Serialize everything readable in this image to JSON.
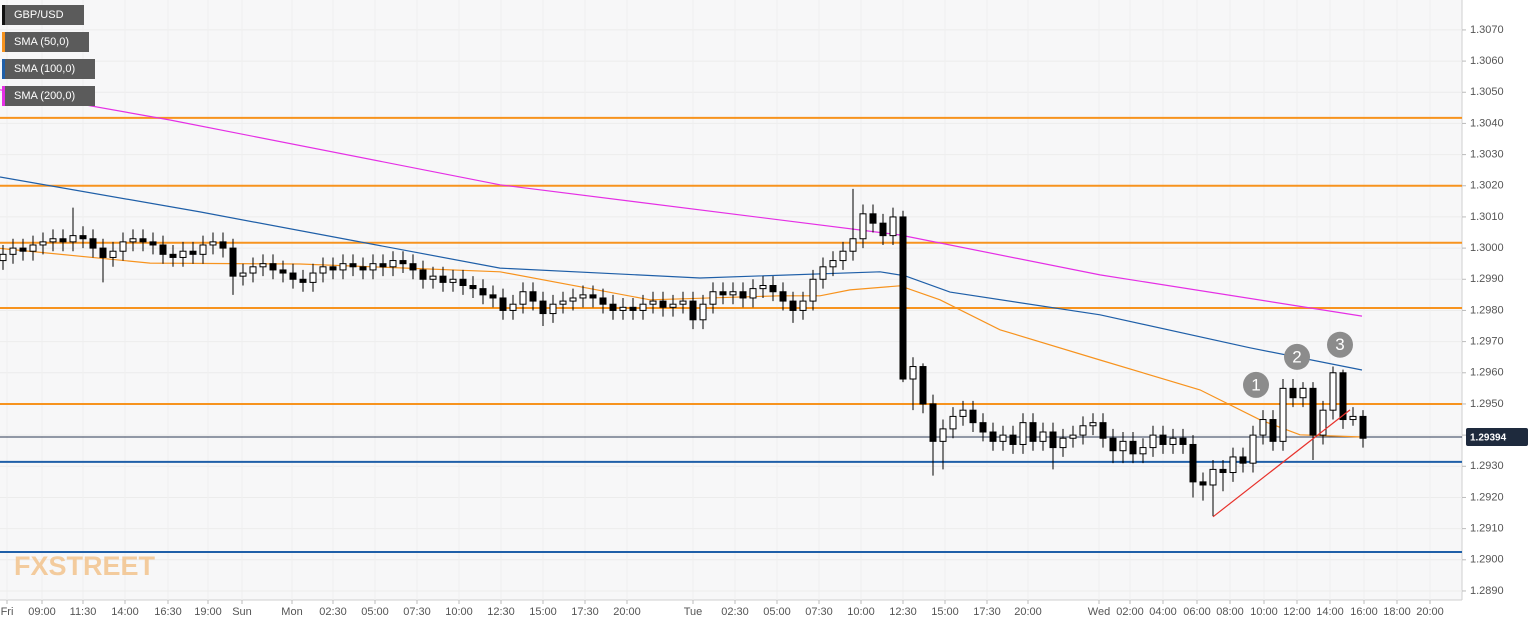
{
  "chart_data": {
    "type": "candlestick",
    "xlim": [
      -0.3,
      145.9
    ],
    "ylim": [
      1.28871,
      1.30796
    ],
    "grid": true,
    "logo": "FXSTREET",
    "last_price": 1.29394,
    "yticks": [
      {
        "value": 1.289,
        "label": "1.2890"
      },
      {
        "value": 1.29,
        "label": "1.2900"
      },
      {
        "value": 1.291,
        "label": "1.2910"
      },
      {
        "value": 1.292,
        "label": "1.2920"
      },
      {
        "value": 1.293,
        "label": "1.2930"
      },
      {
        "value": 1.294,
        "label": "1.2940"
      },
      {
        "value": 1.295,
        "label": "1.2950"
      },
      {
        "value": 1.296,
        "label": "1.2960"
      },
      {
        "value": 1.297,
        "label": "1.2970"
      },
      {
        "value": 1.298,
        "label": "1.2980"
      },
      {
        "value": 1.299,
        "label": "1.2990"
      },
      {
        "value": 1.3,
        "label": "1.3000"
      },
      {
        "value": 1.301,
        "label": "1.3010"
      },
      {
        "value": 1.302,
        "label": "1.3020"
      },
      {
        "value": 1.303,
        "label": "1.3030"
      },
      {
        "value": 1.304,
        "label": "1.3040"
      },
      {
        "value": 1.305,
        "label": "1.3050"
      },
      {
        "value": 1.306,
        "label": "1.3060"
      },
      {
        "value": 1.307,
        "label": "1.3070"
      }
    ],
    "xticks": [
      {
        "value": 0.4,
        "label": "Fri"
      },
      {
        "value": 3.9,
        "label": "09:00"
      },
      {
        "value": 8,
        "label": "11:30"
      },
      {
        "value": 12.2,
        "label": "14:00"
      },
      {
        "value": 16.5,
        "label": "16:30"
      },
      {
        "value": 20.5,
        "label": "19:00"
      },
      {
        "value": 23.9,
        "label": "Sun"
      },
      {
        "value": 28.9,
        "label": "Mon"
      },
      {
        "value": 33,
        "label": "02:30"
      },
      {
        "value": 37.2,
        "label": "05:00"
      },
      {
        "value": 41.4,
        "label": "07:30"
      },
      {
        "value": 45.6,
        "label": "10:00"
      },
      {
        "value": 49.8,
        "label": "12:30"
      },
      {
        "value": 54,
        "label": "15:00"
      },
      {
        "value": 58.2,
        "label": "17:30"
      },
      {
        "value": 62.4,
        "label": "20:00"
      },
      {
        "value": 69,
        "label": "Tue"
      },
      {
        "value": 73.2,
        "label": "02:30"
      },
      {
        "value": 77.4,
        "label": "05:00"
      },
      {
        "value": 81.6,
        "label": "07:30"
      },
      {
        "value": 85.8,
        "label": "10:00"
      },
      {
        "value": 90,
        "label": "12:30"
      },
      {
        "value": 94.2,
        "label": "15:00"
      },
      {
        "value": 98.4,
        "label": "17:30"
      },
      {
        "value": 102.5,
        "label": "20:00"
      },
      {
        "value": 109.6,
        "label": "Wed"
      },
      {
        "value": 112.7,
        "label": "02:00"
      },
      {
        "value": 116,
        "label": "04:00"
      },
      {
        "value": 119.4,
        "label": "06:00"
      },
      {
        "value": 122.7,
        "label": "08:00"
      },
      {
        "value": 126.1,
        "label": "10:00"
      },
      {
        "value": 129.4,
        "label": "12:00"
      },
      {
        "value": 132.7,
        "label": "14:00"
      },
      {
        "value": 136.1,
        "label": "16:00"
      },
      {
        "value": 139.4,
        "label": "18:00"
      },
      {
        "value": 142.7,
        "label": "20:00"
      }
    ],
    "series": [
      {
        "name": "GBP/USD",
        "type": "candlestick",
        "color": "#000000",
        "open": [
          1.2996,
          1.2998,
          1.3,
          1.2999,
          1.3001,
          1.3002,
          1.3003,
          1.3002,
          1.3004,
          1.3003,
          1.3,
          1.2997,
          1.2999,
          1.3002,
          1.3003,
          1.3002,
          1.3001,
          1.2998,
          1.2997,
          1.2999,
          1.2998,
          1.3001,
          1.3002,
          1.3,
          1.2991,
          1.2992,
          1.2994,
          1.2995,
          1.2993,
          1.2992,
          1.299,
          1.2989,
          1.2992,
          1.2994,
          1.2993,
          1.2995,
          1.2994,
          1.2993,
          1.2995,
          1.2994,
          1.2996,
          1.2995,
          1.2993,
          1.299,
          1.2991,
          1.2989,
          1.299,
          1.2988,
          1.2987,
          1.2985,
          1.2984,
          1.298,
          1.2982,
          1.2986,
          1.2983,
          1.2979,
          1.2982,
          1.2983,
          1.2984,
          1.2985,
          1.2984,
          1.2982,
          1.298,
          1.2981,
          1.298,
          1.2982,
          1.2983,
          1.2981,
          1.2982,
          1.2983,
          1.2977,
          1.2982,
          1.2986,
          1.2985,
          1.2986,
          1.2984,
          1.2987,
          1.2988,
          1.2986,
          1.2983,
          1.298,
          1.2983,
          1.299,
          1.2994,
          1.2996,
          1.2999,
          1.3003,
          1.3011,
          1.3008,
          1.3004,
          1.301,
          1.2958,
          1.2962,
          1.295,
          1.2938,
          1.2942,
          1.2946,
          1.2948,
          1.2944,
          1.2941,
          1.2938,
          1.294,
          1.2937,
          1.2944,
          1.2938,
          1.2941,
          1.2936,
          1.2939,
          1.294,
          1.2943,
          1.2944,
          1.2939,
          1.2935,
          1.2938,
          1.2934,
          1.2936,
          1.294,
          1.2937,
          1.2939,
          1.2937,
          1.2925,
          1.2924,
          1.2929,
          1.2928,
          1.2933,
          1.2931,
          1.294,
          1.2945,
          1.2938,
          1.2955,
          1.2952,
          1.2955,
          1.294,
          1.2948,
          1.296,
          1.2945,
          1.2946
        ],
        "high": [
          1.3001,
          1.3003,
          1.3003,
          1.3004,
          1.3005,
          1.3006,
          1.3006,
          1.3013,
          1.3007,
          1.3006,
          1.3003,
          1.3002,
          1.3005,
          1.3006,
          1.3006,
          1.3005,
          1.3004,
          1.3001,
          1.3002,
          1.3002,
          1.3004,
          1.3005,
          1.3005,
          1.3003,
          1.2995,
          1.2997,
          1.2998,
          1.2998,
          1.2996,
          1.2995,
          1.2993,
          1.2995,
          1.2997,
          1.2997,
          1.2998,
          1.2998,
          1.2997,
          1.2998,
          1.2998,
          1.2999,
          1.2999,
          1.2998,
          1.2996,
          1.2994,
          1.2994,
          1.2993,
          1.2993,
          1.2991,
          1.299,
          1.2988,
          1.2987,
          1.2985,
          1.2989,
          1.2989,
          1.2986,
          1.2985,
          1.2986,
          1.2987,
          1.2988,
          1.2988,
          1.2987,
          1.2985,
          1.2984,
          1.2984,
          1.2985,
          1.2986,
          1.2986,
          1.2985,
          1.2986,
          1.2986,
          1.2985,
          1.2989,
          1.2989,
          1.2989,
          1.2989,
          1.299,
          1.2991,
          1.2991,
          1.2989,
          1.2986,
          1.2986,
          1.2993,
          1.2997,
          1.2999,
          1.3002,
          1.3019,
          1.3014,
          1.3014,
          1.3011,
          1.3013,
          1.3012,
          1.2965,
          1.2963,
          1.2953,
          1.2945,
          1.2949,
          1.2951,
          1.2951,
          1.2947,
          1.2944,
          1.2943,
          1.2943,
          1.2947,
          1.2947,
          1.2944,
          1.2944,
          1.2942,
          1.2943,
          1.2946,
          1.2947,
          1.2947,
          1.2942,
          1.2941,
          1.2941,
          1.2939,
          1.2943,
          1.2943,
          1.2942,
          1.2942,
          1.294,
          1.2928,
          1.2932,
          1.2932,
          1.2936,
          1.2936,
          1.2943,
          1.2948,
          1.2948,
          1.2958,
          1.2958,
          1.2957,
          1.2957,
          1.2951,
          1.2962,
          1.2961,
          1.2949,
          1.2948
        ],
        "low": [
          1.2993,
          1.2995,
          1.2996,
          1.2996,
          1.2998,
          1.2999,
          1.2999,
          1.2999,
          1.3,
          1.2997,
          1.2989,
          1.2994,
          1.2996,
          1.2999,
          1.2999,
          1.2998,
          1.2995,
          1.2994,
          1.2994,
          1.2995,
          1.2995,
          1.2998,
          1.2997,
          1.2985,
          1.2988,
          1.2989,
          1.2991,
          1.299,
          1.2989,
          1.2987,
          1.2986,
          1.2986,
          1.2989,
          1.299,
          1.299,
          1.2991,
          1.299,
          1.299,
          1.2991,
          1.2991,
          1.2992,
          1.299,
          1.2987,
          1.2987,
          1.2986,
          1.2986,
          1.2985,
          1.2984,
          1.2982,
          1.2981,
          1.2977,
          1.2977,
          1.2979,
          1.298,
          1.2975,
          1.2976,
          1.2979,
          1.298,
          1.2981,
          1.2981,
          1.2979,
          1.2977,
          1.2977,
          1.2977,
          1.2977,
          1.2979,
          1.2978,
          1.2978,
          1.2979,
          1.2974,
          1.2974,
          1.2979,
          1.2982,
          1.2982,
          1.2981,
          1.2981,
          1.2984,
          1.2983,
          1.298,
          1.2976,
          1.2977,
          1.298,
          1.2987,
          1.2991,
          1.2993,
          1.2996,
          1.3,
          1.3005,
          1.3001,
          1.3001,
          1.2957,
          1.2948,
          1.2947,
          1.2927,
          1.2929,
          1.2939,
          1.2943,
          1.2941,
          1.2938,
          1.2935,
          1.2935,
          1.2934,
          1.2934,
          1.2935,
          1.2935,
          1.2929,
          1.2933,
          1.2936,
          1.2937,
          1.294,
          1.2936,
          1.2931,
          1.2931,
          1.2931,
          1.2931,
          1.2933,
          1.2934,
          1.2934,
          1.2934,
          1.292,
          1.2919,
          1.2914,
          1.2922,
          1.2925,
          1.2928,
          1.2928,
          1.2937,
          1.2935,
          1.2935,
          1.2949,
          1.2949,
          1.2932,
          1.2937,
          1.2945,
          1.2942,
          1.2943,
          1.2936
        ],
        "close": [
          1.2998,
          1.3,
          1.2999,
          1.3001,
          1.3002,
          1.3003,
          1.3002,
          1.3004,
          1.3003,
          1.3,
          1.2997,
          1.2999,
          1.3002,
          1.3003,
          1.3002,
          1.3001,
          1.2998,
          1.2997,
          1.2999,
          1.2998,
          1.3001,
          1.3002,
          1.3,
          1.2991,
          1.2992,
          1.2994,
          1.2995,
          1.2993,
          1.2992,
          1.299,
          1.2989,
          1.2992,
          1.2994,
          1.2993,
          1.2995,
          1.2994,
          1.2993,
          1.2995,
          1.2994,
          1.2996,
          1.2995,
          1.2993,
          1.299,
          1.2991,
          1.2989,
          1.299,
          1.2988,
          1.2987,
          1.2985,
          1.2984,
          1.298,
          1.2982,
          1.2986,
          1.2983,
          1.2979,
          1.2982,
          1.2983,
          1.2984,
          1.2985,
          1.2984,
          1.2982,
          1.298,
          1.2981,
          1.298,
          1.2982,
          1.2983,
          1.2981,
          1.2982,
          1.2983,
          1.2977,
          1.2982,
          1.2986,
          1.2985,
          1.2986,
          1.2984,
          1.2987,
          1.2988,
          1.2986,
          1.2983,
          1.298,
          1.2983,
          1.299,
          1.2994,
          1.2996,
          1.2999,
          1.3003,
          1.3011,
          1.3008,
          1.3004,
          1.301,
          1.2958,
          1.2962,
          1.295,
          1.2938,
          1.2942,
          1.2946,
          1.2948,
          1.2944,
          1.2941,
          1.2938,
          1.294,
          1.2937,
          1.2944,
          1.2938,
          1.2941,
          1.2936,
          1.2939,
          1.294,
          1.2943,
          1.2944,
          1.2939,
          1.2935,
          1.2938,
          1.2934,
          1.2936,
          1.294,
          1.2937,
          1.2939,
          1.2937,
          1.2925,
          1.2924,
          1.2929,
          1.2928,
          1.2933,
          1.2931,
          1.294,
          1.2945,
          1.2938,
          1.2955,
          1.2952,
          1.2955,
          1.294,
          1.2948,
          1.296,
          1.2945,
          1.2946,
          1.2939
        ]
      },
      {
        "name": "SMA (50,0)",
        "type": "line",
        "color": "#f7931e",
        "x": [
          -0.3,
          14.7,
          29.7,
          49.7,
          64.7,
          77.7,
          81.7,
          84.7,
          89.7,
          93.7,
          99.7,
          109.7,
          119.7,
          125.7,
          129.7,
          135.9
        ],
        "values": [
          1.29999,
          1.29952,
          1.29949,
          1.29924,
          1.29834,
          1.29847,
          1.29847,
          1.29866,
          1.29879,
          1.29834,
          1.29738,
          1.29641,
          1.29545,
          1.29449,
          1.29401,
          1.29394
        ]
      },
      {
        "name": "SMA (100,0)",
        "type": "line",
        "color": "#1f5fa8",
        "x": [
          -0.3,
          19.7,
          34.7,
          49.7,
          69.7,
          87.7,
          90.2,
          94.7,
          109.7,
          124.7,
          135.9
        ],
        "values": [
          1.30228,
          1.30116,
          1.30026,
          1.29936,
          1.29904,
          1.29924,
          1.29911,
          1.29859,
          1.29786,
          1.2968,
          1.29609
        ]
      },
      {
        "name": "SMA (200,0)",
        "type": "line",
        "color": "#e52fe5",
        "x": [
          -0.3,
          16.7,
          49.7,
          89.7,
          109.7,
          135.9
        ],
        "values": [
          1.30508,
          1.30411,
          1.30203,
          1.30042,
          1.29914,
          1.29782
        ]
      }
    ],
    "levels": [
      {
        "value": 1.30418,
        "color": "#f7931e"
      },
      {
        "value": 1.302,
        "color": "#f7931e"
      },
      {
        "value": 1.30017,
        "color": "#f7931e"
      },
      {
        "value": 1.29808,
        "color": "#f7931e"
      },
      {
        "value": 1.295,
        "color": "#f7931e"
      },
      {
        "value": 1.29314,
        "color": "#1f5fa8"
      },
      {
        "value": 1.29025,
        "color": "#1f5fa8"
      }
    ],
    "trendline": {
      "color": "#e8322c",
      "x": [
        121,
        134.7
      ],
      "values": [
        1.29138,
        1.29481
      ]
    },
    "annotations": [
      {
        "text": "1",
        "x": 125.3,
        "y": 1.29561
      },
      {
        "text": "2",
        "x": 129.4,
        "y": 1.29651
      },
      {
        "text": "3",
        "x": 133.7,
        "y": 1.2969
      }
    ]
  }
}
